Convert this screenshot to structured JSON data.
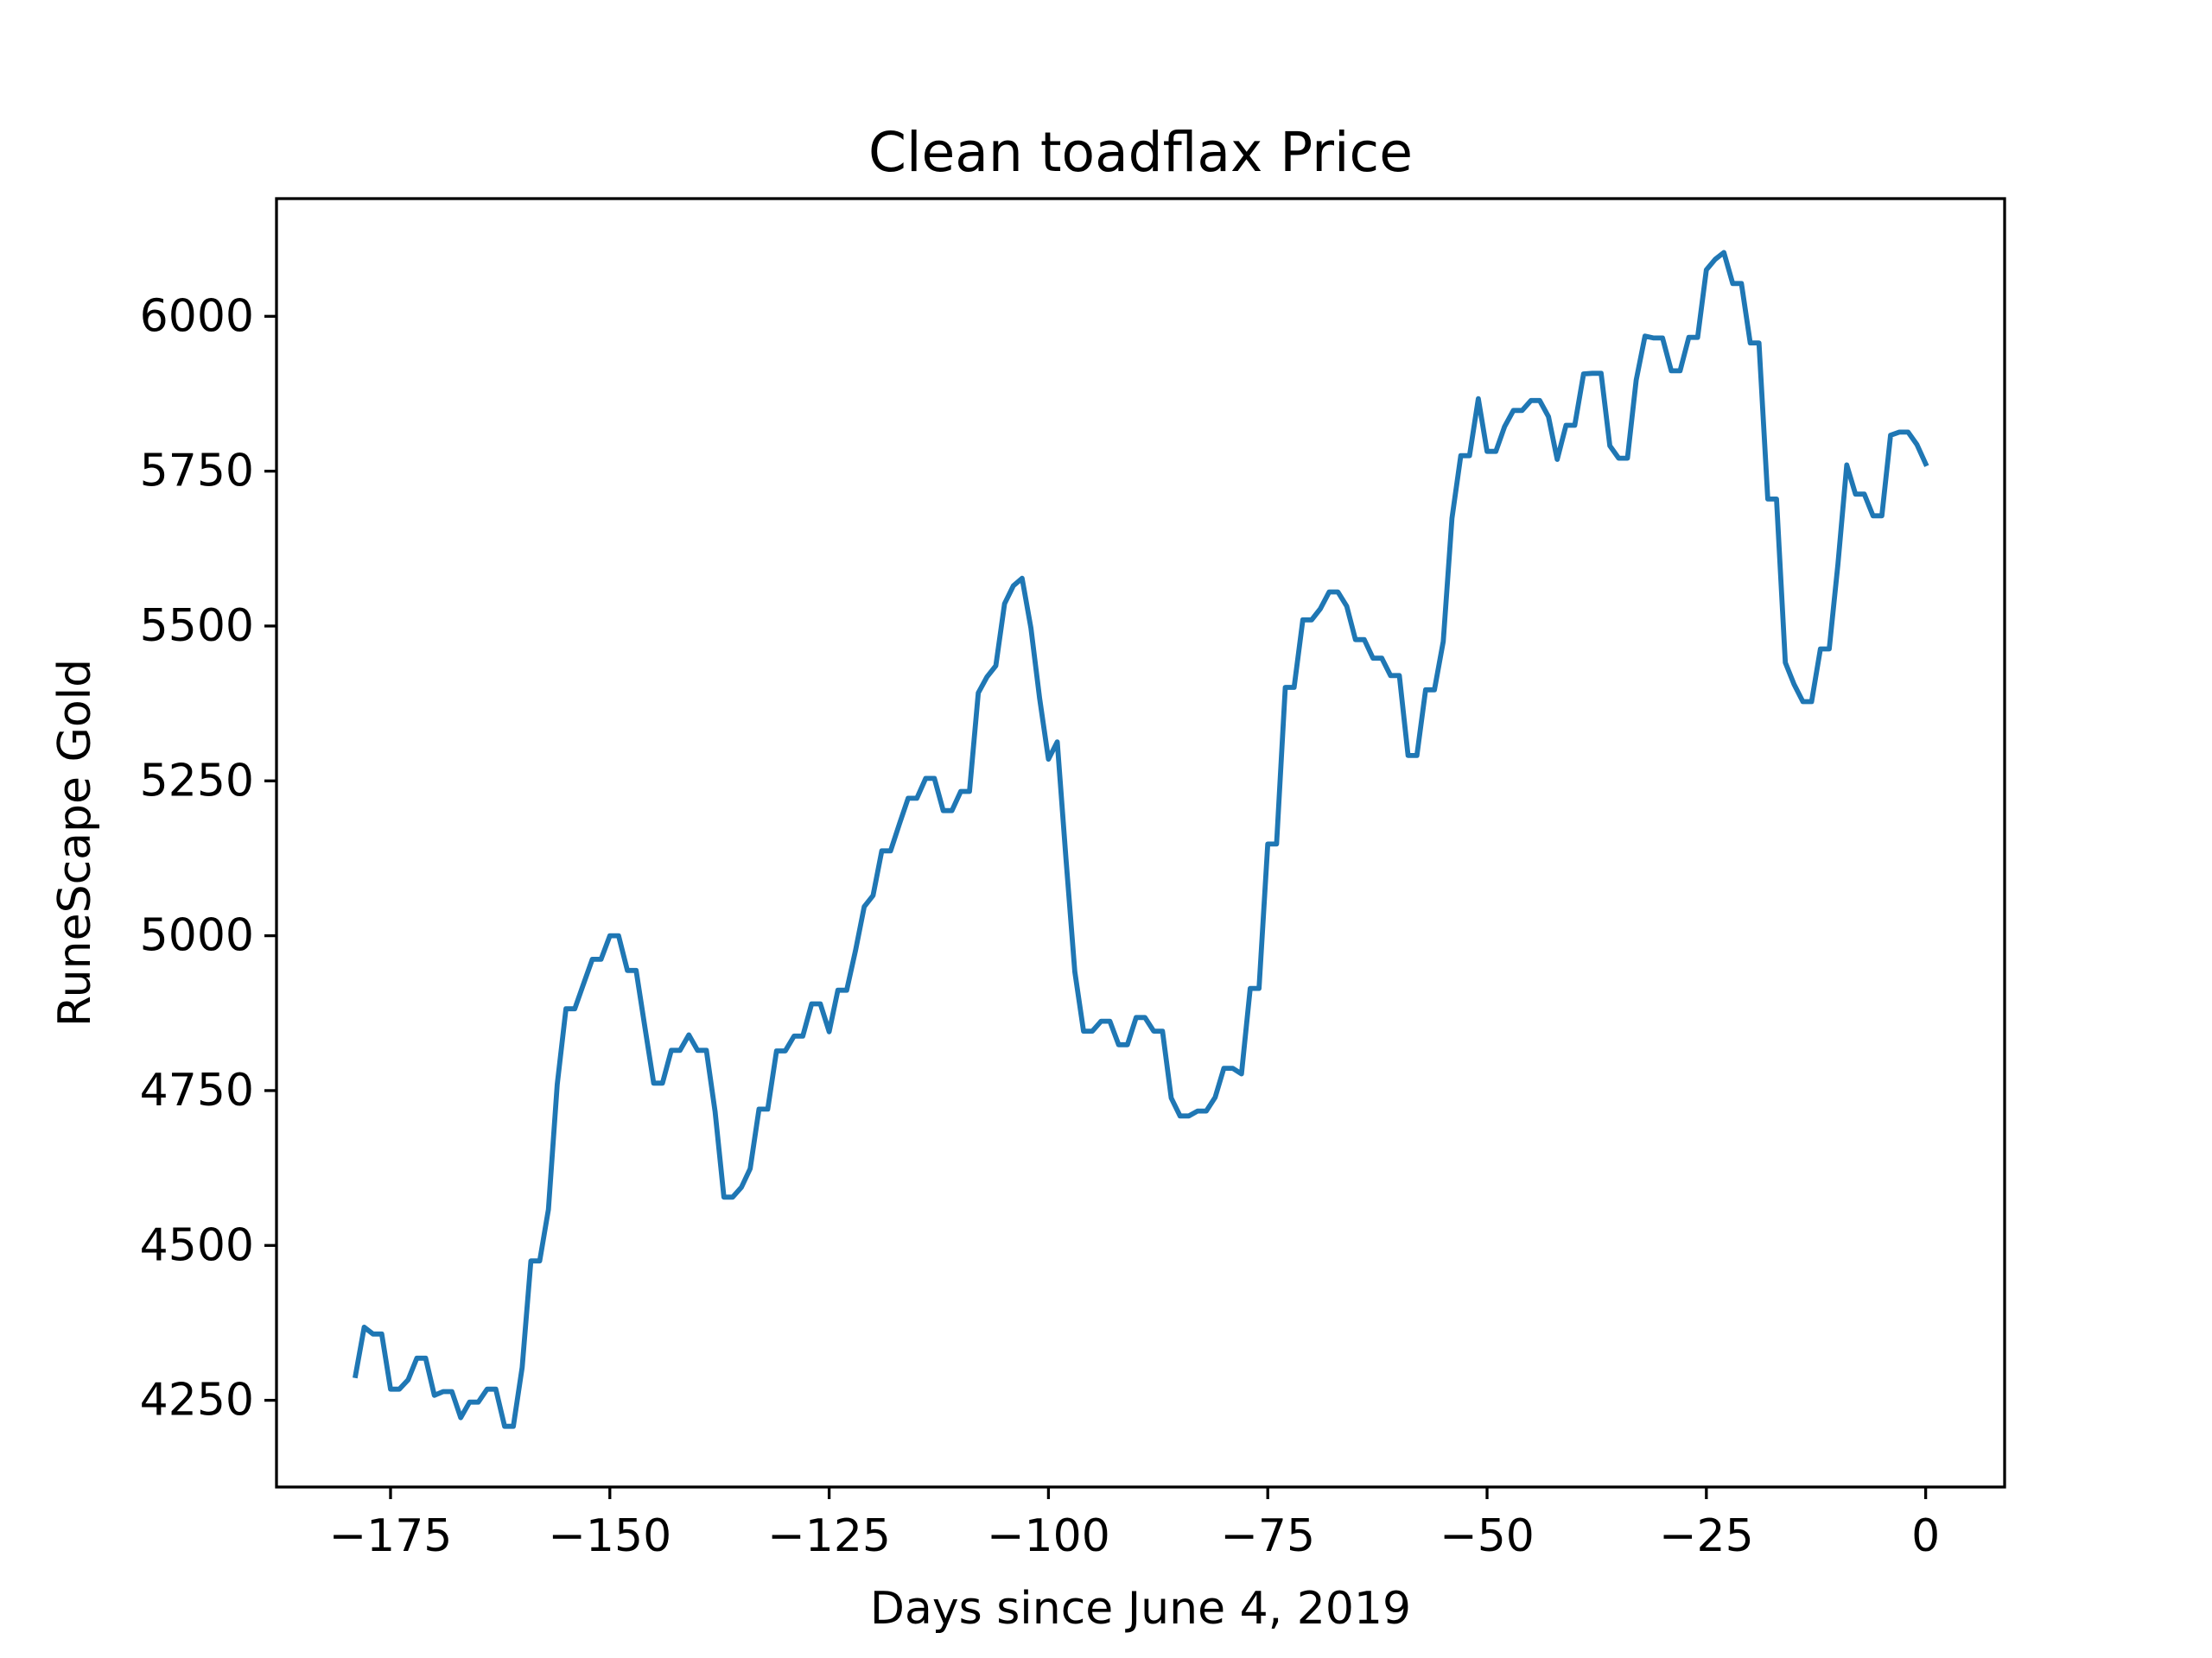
{
  "chart_data": {
    "type": "line",
    "title": "Clean toadflax Price",
    "xlabel": "Days since June 4, 2019",
    "ylabel": "RuneScape Gold",
    "xlim": [
      -188,
      9
    ],
    "ylim": [
      4110,
      6190
    ],
    "xticks": [
      -175,
      -150,
      -125,
      -100,
      -75,
      -50,
      -25,
      0
    ],
    "xtick_labels": [
      "−175",
      "−150",
      "−125",
      "−100",
      "−75",
      "−50",
      "−25",
      "0"
    ],
    "yticks": [
      4250,
      4500,
      4750,
      5000,
      5250,
      5500,
      5750,
      6000
    ],
    "ytick_labels": [
      "4250",
      "4500",
      "4750",
      "5000",
      "5250",
      "5500",
      "5750",
      "6000"
    ],
    "grid": false,
    "series": [
      {
        "color": "#1f77b4",
        "x": [
          -179,
          -178,
          -177,
          -176,
          -175,
          -174,
          -173,
          -172,
          -171,
          -170,
          -169,
          -168,
          -167,
          -166,
          -165,
          -164,
          -163,
          -162,
          -161,
          -160,
          -159,
          -158,
          -157,
          -156,
          -155,
          -154,
          -153,
          -152,
          -151,
          -150,
          -149,
          -148,
          -147,
          -146,
          -145,
          -144,
          -143,
          -142,
          -141,
          -140,
          -139,
          -138,
          -137,
          -136,
          -135,
          -134,
          -133,
          -132,
          -131,
          -130,
          -129,
          -128,
          -127,
          -126,
          -125,
          -124,
          -123,
          -122,
          -121,
          -120,
          -119,
          -118,
          -117,
          -116,
          -115,
          -114,
          -113,
          -112,
          -111,
          -110,
          -109,
          -108,
          -107,
          -106,
          -105,
          -104,
          -103,
          -102,
          -101,
          -100,
          -99,
          -98,
          -97,
          -96,
          -95,
          -94,
          -93,
          -92,
          -91,
          -90,
          -89,
          -88,
          -87,
          -86,
          -85,
          -84,
          -83,
          -82,
          -81,
          -80,
          -79,
          -78,
          -77,
          -76,
          -75,
          -74,
          -73,
          -72,
          -71,
          -70,
          -69,
          -68,
          -67,
          -66,
          -65,
          -64,
          -63,
          -62,
          -61,
          -60,
          -59,
          -58,
          -57,
          -56,
          -55,
          -54,
          -53,
          -52,
          -51,
          -50,
          -49,
          -48,
          -47,
          -46,
          -45,
          -44,
          -43,
          -42,
          -41,
          -40,
          -39,
          -38,
          -37,
          -36,
          -35,
          -34,
          -33,
          -32,
          -31,
          -30,
          -29,
          -28,
          -27,
          -26,
          -25,
          -24,
          -23,
          -22,
          -21,
          -20,
          -19,
          -18,
          -17,
          -16,
          -15,
          -14,
          -13,
          -12,
          -11,
          -10,
          -9,
          -8,
          -7,
          -6,
          -5,
          -4,
          -3,
          -2,
          -1,
          0
        ],
        "y": [
          4290,
          4368,
          4357,
          4357,
          4268,
          4268,
          4283,
          4318,
          4318,
          4258,
          4264,
          4264,
          4222,
          4247,
          4247,
          4268,
          4268,
          4208,
          4208,
          4303,
          4475,
          4475,
          4558,
          4760,
          4882,
          4882,
          4922,
          4962,
          4962,
          5000,
          5000,
          4944,
          4944,
          4852,
          4762,
          4762,
          4815,
          4815,
          4840,
          4815,
          4815,
          4716,
          4578,
          4578,
          4594,
          4624,
          4720,
          4720,
          4814,
          4814,
          4838,
          4838,
          4890,
          4890,
          4845,
          4912,
          4912,
          4976,
          5047,
          5065,
          5137,
          5137,
          5180,
          5222,
          5222,
          5254,
          5254,
          5202,
          5202,
          5233,
          5233,
          5392,
          5418,
          5436,
          5536,
          5565,
          5577,
          5497,
          5383,
          5285,
          5313,
          5124,
          4942,
          4846,
          4846,
          4862,
          4862,
          4824,
          4824,
          4868,
          4868,
          4846,
          4846,
          4738,
          4709,
          4709,
          4717,
          4717,
          4739,
          4786,
          4786,
          4777,
          4915,
          4915,
          5148,
          5148,
          5401,
          5401,
          5510,
          5510,
          5528,
          5555,
          5555,
          5532,
          5478,
          5478,
          5448,
          5448,
          5420,
          5420,
          5291,
          5291,
          5397,
          5397,
          5475,
          5674,
          5775,
          5775,
          5867,
          5782,
          5782,
          5822,
          5848,
          5848,
          5864,
          5864,
          5838,
          5769,
          5824,
          5824,
          5907,
          5908,
          5908,
          5791,
          5771,
          5771,
          5897,
          5968,
          5965,
          5965,
          5912,
          5912,
          5966,
          5966,
          6075,
          6092,
          6103,
          6053,
          6053,
          5957,
          5957,
          5705,
          5705,
          5441,
          5406,
          5378,
          5378,
          5463,
          5463,
          5600,
          5760,
          5713,
          5713,
          5678,
          5678,
          5808,
          5813,
          5813,
          5793,
          5762
        ]
      }
    ]
  }
}
